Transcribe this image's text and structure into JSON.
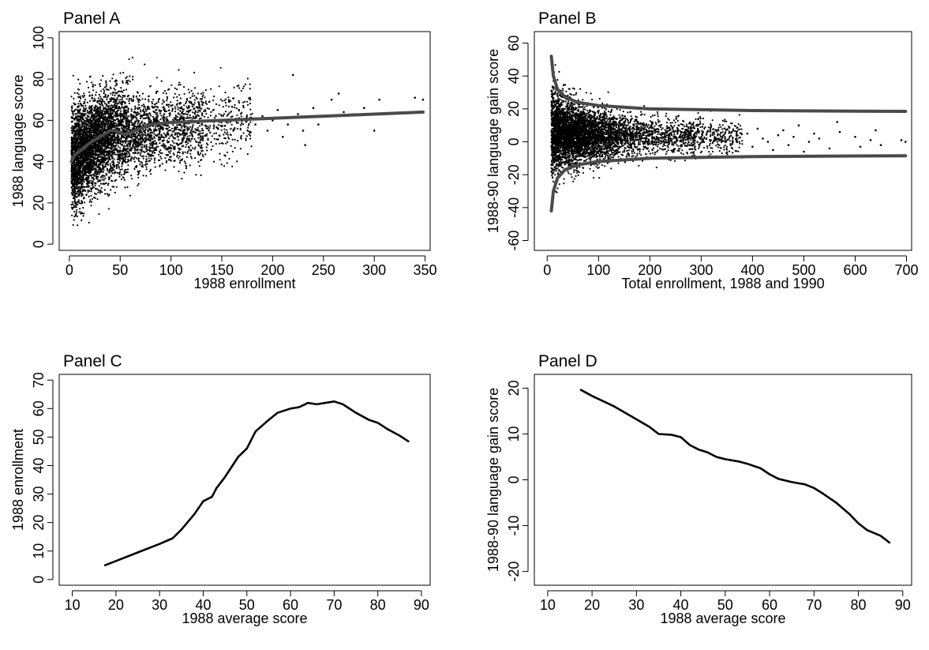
{
  "chart_data": [
    {
      "id": "A",
      "type": "scatter",
      "title": "Panel A",
      "xlabel": "1988 enrollment",
      "ylabel": "1988 language score",
      "xlim": [
        -10,
        355
      ],
      "ylim": [
        -3,
        103
      ],
      "xticks": [
        0,
        50,
        100,
        150,
        200,
        250,
        300,
        350
      ],
      "yticks": [
        0,
        20,
        40,
        60,
        80,
        100
      ],
      "scatter": {
        "dense": [
          [
            3,
            90
          ],
          [
            30,
            55
          ],
          [
            60,
            58
          ],
          [
            100,
            58
          ],
          [
            135,
            60
          ],
          [
            180,
            60
          ]
        ],
        "sparse": [
          [
            183,
            58
          ],
          [
            190,
            62
          ],
          [
            195,
            55
          ],
          [
            200,
            60
          ],
          [
            205,
            65
          ],
          [
            210,
            52
          ],
          [
            215,
            58
          ],
          [
            220,
            82
          ],
          [
            225,
            63
          ],
          [
            230,
            55
          ],
          [
            232,
            48
          ],
          [
            240,
            66
          ],
          [
            245,
            58
          ],
          [
            250,
            62
          ],
          [
            258,
            70
          ],
          [
            265,
            73
          ],
          [
            270,
            64
          ],
          [
            280,
            63
          ],
          [
            290,
            66
          ],
          [
            300,
            55
          ],
          [
            305,
            70
          ],
          [
            340,
            71
          ],
          [
            348,
            70
          ]
        ]
      },
      "series": [
        {
          "values_xy": [
            [
              2,
              40
            ],
            [
              5,
              43
            ],
            [
              10,
              45
            ],
            [
              20,
              49
            ],
            [
              30,
              52
            ],
            [
              40,
              55
            ],
            [
              45,
              55
            ],
            [
              55,
              53
            ],
            [
              65,
              55
            ],
            [
              80,
              58
            ],
            [
              100,
              59
            ],
            [
              150,
              60
            ],
            [
              200,
              61
            ],
            [
              250,
              62
            ],
            [
              300,
              63
            ],
            [
              348,
              64
            ]
          ]
        }
      ]
    },
    {
      "id": "B",
      "type": "scatter",
      "title": "Panel B",
      "xlabel": "Total enrollment, 1988 and 1990",
      "ylabel": "1988-90 language gain score",
      "xlim": [
        -25,
        710
      ],
      "ylim": [
        -66,
        67
      ],
      "xticks": [
        0,
        100,
        200,
        300,
        400,
        500,
        600,
        700
      ],
      "yticks": [
        -60,
        -40,
        -20,
        0,
        20,
        40,
        60
      ],
      "scatter": {
        "dense": [
          [
            8,
            30
          ],
          [
            50,
            11
          ],
          [
            100,
            6
          ],
          [
            200,
            4
          ],
          [
            300,
            3
          ],
          [
            380,
            2
          ]
        ],
        "sparse": [
          [
            390,
            5
          ],
          [
            400,
            -3
          ],
          [
            410,
            8
          ],
          [
            420,
            2
          ],
          [
            430,
            0
          ],
          [
            440,
            -5
          ],
          [
            450,
            4
          ],
          [
            460,
            7
          ],
          [
            470,
            -2
          ],
          [
            480,
            3
          ],
          [
            490,
            10
          ],
          [
            500,
            -6
          ],
          [
            510,
            0
          ],
          [
            520,
            5
          ],
          [
            530,
            2
          ],
          [
            550,
            -4
          ],
          [
            565,
            12
          ],
          [
            570,
            6
          ],
          [
            600,
            3
          ],
          [
            610,
            -3
          ],
          [
            630,
            1
          ],
          [
            640,
            7
          ],
          [
            650,
            -2
          ],
          [
            690,
            1
          ],
          [
            698,
            0
          ]
        ]
      },
      "series": [
        {
          "values_xy": [
            [
              8,
              52
            ],
            [
              12,
              40
            ],
            [
              20,
              32
            ],
            [
              35,
              27
            ],
            [
              60,
              24
            ],
            [
              100,
              22
            ],
            [
              200,
              20
            ],
            [
              300,
              19.5
            ],
            [
              400,
              19
            ],
            [
              500,
              18.8
            ],
            [
              600,
              18.6
            ],
            [
              698,
              18.5
            ]
          ]
        },
        {
          "values_xy": [
            [
              8,
              -42
            ],
            [
              12,
              -30
            ],
            [
              20,
              -22
            ],
            [
              35,
              -17
            ],
            [
              60,
              -14
            ],
            [
              100,
              -12
            ],
            [
              200,
              -10
            ],
            [
              300,
              -9.5
            ],
            [
              400,
              -9
            ],
            [
              500,
              -8.8
            ],
            [
              600,
              -8.6
            ],
            [
              698,
              -8.5
            ]
          ]
        }
      ]
    },
    {
      "id": "C",
      "type": "line",
      "title": "Panel C",
      "xlabel": "1988 average score",
      "ylabel": "1988 enrollment",
      "xlim": [
        7,
        92
      ],
      "ylim": [
        -2,
        72
      ],
      "xticks": [
        10,
        20,
        30,
        40,
        50,
        60,
        70,
        80,
        90
      ],
      "yticks": [
        0,
        10,
        20,
        30,
        40,
        50,
        60,
        70
      ],
      "series": [
        {
          "values_xy": [
            [
              17.5,
              5
            ],
            [
              20,
              6.5
            ],
            [
              25,
              9.5
            ],
            [
              30,
              12.5
            ],
            [
              33,
              14.5
            ],
            [
              35,
              17.5
            ],
            [
              38,
              23
            ],
            [
              40,
              27.5
            ],
            [
              42,
              29
            ],
            [
              43,
              32
            ],
            [
              45,
              36
            ],
            [
              48,
              43
            ],
            [
              50,
              46
            ],
            [
              52,
              52
            ],
            [
              55,
              56
            ],
            [
              57,
              58.5
            ],
            [
              60,
              60
            ],
            [
              62,
              60.5
            ],
            [
              64,
              62
            ],
            [
              66,
              61.5
            ],
            [
              70,
              62.5
            ],
            [
              72,
              61.5
            ],
            [
              75,
              58.5
            ],
            [
              78,
              56
            ],
            [
              80,
              55
            ],
            [
              82,
              53
            ],
            [
              85,
              50.5
            ],
            [
              87,
              48.5
            ]
          ]
        }
      ]
    },
    {
      "id": "D",
      "type": "line",
      "title": "Panel D",
      "xlabel": "1988 average score",
      "ylabel": "1988-90 language gain score",
      "xlim": [
        7,
        92
      ],
      "ylim": [
        -23,
        23
      ],
      "xticks": [
        10,
        20,
        30,
        40,
        50,
        60,
        70,
        80,
        90
      ],
      "yticks": [
        -20,
        -10,
        0,
        10,
        20
      ],
      "series": [
        {
          "values_xy": [
            [
              17.5,
              19.6
            ],
            [
              20,
              18.3
            ],
            [
              25,
              16
            ],
            [
              30,
              13.2
            ],
            [
              33,
              11.5
            ],
            [
              35,
              10
            ],
            [
              38,
              9.8
            ],
            [
              40,
              9.3
            ],
            [
              42,
              7.6
            ],
            [
              44,
              6.6
            ],
            [
              46,
              6
            ],
            [
              48,
              5
            ],
            [
              50,
              4.5
            ],
            [
              53,
              4
            ],
            [
              55,
              3.5
            ],
            [
              58,
              2.5
            ],
            [
              60,
              1.2
            ],
            [
              62,
              0.2
            ],
            [
              65,
              -0.5
            ],
            [
              68,
              -1
            ],
            [
              70,
              -1.8
            ],
            [
              72,
              -3
            ],
            [
              75,
              -5
            ],
            [
              78,
              -7.5
            ],
            [
              80,
              -9.5
            ],
            [
              82,
              -11
            ],
            [
              85,
              -12.2
            ],
            [
              87,
              -13.7
            ]
          ]
        }
      ]
    }
  ]
}
